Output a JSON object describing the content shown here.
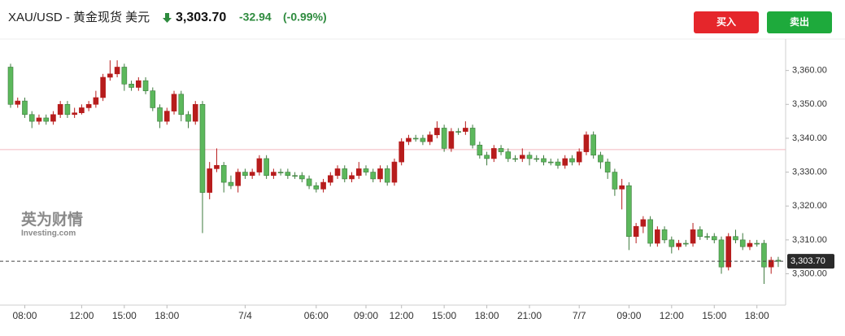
{
  "header": {
    "symbol": "XAU/USD - 黄金现货 美元",
    "price": "3,303.70",
    "change": "-32.94",
    "change_pct": "(-0.99%)"
  },
  "buttons": {
    "buy": "买入",
    "sell": "卖出"
  },
  "watermark": {
    "cn": "英为财情",
    "en": "Investing.com"
  },
  "chart_data": {
    "type": "candlestick",
    "up_color": "#b71c1c",
    "down_color": "#5cb85c",
    "ylim": [
      3291,
      3370
    ],
    "yticks": [
      {
        "value": 3300,
        "label": "3,300.00"
      },
      {
        "value": 3310,
        "label": "3,310.00"
      },
      {
        "value": 3320,
        "label": "3,320.00"
      },
      {
        "value": 3330,
        "label": "3,330.00"
      },
      {
        "value": 3340,
        "label": "3,340.00"
      },
      {
        "value": 3350,
        "label": "3,350.00"
      },
      {
        "value": 3360,
        "label": "3,360.00"
      }
    ],
    "prev_close": 3336.64,
    "last_price": {
      "value": 3303.7,
      "label": "3,303.70"
    },
    "categories": [
      null,
      null,
      "08:00",
      null,
      null,
      null,
      null,
      null,
      null,
      null,
      "12:00",
      null,
      null,
      null,
      null,
      null,
      "15:00",
      null,
      null,
      null,
      null,
      null,
      "18:00",
      null,
      null,
      null,
      null,
      null,
      null,
      null,
      null,
      null,
      null,
      "7/4",
      null,
      null,
      null,
      null,
      null,
      null,
      null,
      null,
      null,
      "06:00",
      null,
      null,
      null,
      null,
      null,
      null,
      "09:00",
      null,
      null,
      null,
      null,
      "12:00",
      null,
      null,
      null,
      null,
      null,
      "15:00",
      null,
      null,
      null,
      null,
      null,
      "18:00",
      null,
      null,
      null,
      null,
      null,
      "21:00",
      null,
      null,
      null,
      null,
      null,
      null,
      "7/7",
      null,
      null,
      null,
      null,
      null,
      null,
      "09:00",
      null,
      null,
      null,
      null,
      null,
      "12:00",
      null,
      null,
      null,
      null,
      null,
      "15:00",
      null,
      null,
      null,
      null,
      null,
      "18:00",
      null,
      null,
      null
    ],
    "open": [
      3361,
      3350,
      3351,
      3347,
      3345,
      3346,
      3345,
      3347,
      3350,
      3347,
      3347.5,
      3349,
      3350,
      3352,
      3358,
      3359,
      3361,
      3356,
      3355,
      3357,
      3354,
      3349,
      3345,
      3348,
      3353,
      3347,
      3345,
      3350,
      3324,
      3331,
      3332,
      3327,
      3326,
      3330,
      3329,
      3330,
      3334,
      3329,
      3330,
      3330,
      3329,
      3329,
      3328,
      3326,
      3325,
      3327,
      3329,
      3331,
      3328,
      3329,
      3331,
      3330,
      3328,
      3331,
      3327,
      3333,
      3339,
      3340,
      3340,
      3339,
      3341,
      3343,
      3337,
      3342,
      3342,
      3343,
      3338,
      3335,
      3334,
      3337,
      3336,
      3334,
      3334,
      3335,
      3334,
      3334,
      3333,
      3333,
      3332,
      3334,
      3333,
      3336,
      3341,
      3335,
      3333,
      3330,
      3325,
      3326,
      3311,
      3314,
      3316,
      3309,
      3313,
      3310,
      3308,
      3309,
      3309,
      3313,
      3311,
      3311,
      3310,
      3302,
      3311,
      3310,
      3308,
      3309,
      3309,
      3302,
      3304
    ],
    "high": [
      3362,
      3352,
      3352,
      3348,
      3347,
      3347,
      3348,
      3351,
      3351,
      3349,
      3350,
      3351,
      3354,
      3359,
      3363,
      3363,
      3362,
      3357,
      3358,
      3358,
      3355,
      3350,
      3349,
      3354,
      3354,
      3348,
      3351,
      3351,
      3333,
      3337,
      3333,
      3329,
      3331,
      3331,
      3331,
      3335,
      3335,
      3331,
      3331,
      3331,
      3330,
      3330,
      3329,
      3327,
      3328,
      3330,
      3332,
      3332,
      3330,
      3333,
      3332,
      3331,
      3332,
      3332,
      3334,
      3340,
      3341,
      3341,
      3341,
      3342,
      3345,
      3344,
      3343,
      3343,
      3345,
      3344,
      3339,
      3336,
      3338,
      3338,
      3337,
      3335,
      3337,
      3336,
      3335,
      3335,
      3334,
      3334,
      3335,
      3335,
      3337,
      3342,
      3342,
      3336,
      3334,
      3331,
      3328,
      3327,
      3315,
      3317,
      3317,
      3314,
      3314,
      3311,
      3310,
      3310,
      3315,
      3314,
      3312,
      3312,
      3311,
      3312,
      3313,
      3312,
      3310,
      3310,
      3310,
      3305,
      3305
    ],
    "low": [
      3349,
      3349,
      3346,
      3343,
      3344,
      3344,
      3344,
      3346,
      3346,
      3346,
      3347,
      3348,
      3349,
      3351,
      3357,
      3358,
      3354,
      3354,
      3354,
      3353,
      3348,
      3343,
      3344,
      3347,
      3345,
      3343,
      3344,
      3312,
      3322,
      3330,
      3324,
      3325,
      3324,
      3328,
      3328,
      3329,
      3328,
      3328,
      3329,
      3328,
      3328,
      3327,
      3325,
      3324,
      3324,
      3326,
      3328,
      3327,
      3327,
      3328,
      3329,
      3327,
      3327,
      3326,
      3326,
      3332,
      3338,
      3339,
      3338,
      3338,
      3340,
      3336,
      3336,
      3341,
      3341,
      3337,
      3334,
      3332,
      3333,
      3335,
      3333,
      3333,
      3333,
      3332,
      3333,
      3332,
      3332,
      3331,
      3331,
      3332,
      3332,
      3335,
      3334,
      3331,
      3328,
      3323,
      3319,
      3307,
      3309,
      3312,
      3308,
      3308,
      3309,
      3306,
      3307,
      3308,
      3308,
      3310,
      3310,
      3309,
      3300,
      3301,
      3309,
      3307,
      3307,
      3308,
      3297,
      3300,
      3302
    ],
    "close": [
      3350,
      3351,
      3347,
      3345,
      3346,
      3345,
      3347,
      3350,
      3347,
      3347.5,
      3349,
      3350,
      3352,
      3358,
      3359,
      3361,
      3356,
      3355,
      3357,
      3354,
      3349,
      3345,
      3348,
      3353,
      3347,
      3345,
      3350,
      3324,
      3331,
      3332,
      3327,
      3326,
      3330,
      3329,
      3330,
      3334,
      3329,
      3330,
      3330,
      3329,
      3329,
      3328,
      3326,
      3325,
      3327,
      3329,
      3331,
      3328,
      3329,
      3331,
      3330,
      3328,
      3331,
      3327,
      3333,
      3339,
      3340,
      3340,
      3339,
      3341,
      3343,
      3337,
      3342,
      3342,
      3343,
      3338,
      3335,
      3334,
      3337,
      3336,
      3334,
      3334,
      3335,
      3334,
      3334,
      3333,
      3333,
      3332,
      3334,
      3333,
      3336,
      3341,
      3335,
      3333,
      3330,
      3325,
      3326,
      3311,
      3314,
      3316,
      3309,
      3313,
      3310,
      3308,
      3309,
      3309,
      3313,
      3311,
      3311,
      3310,
      3302,
      3311,
      3310,
      3308,
      3309,
      3309,
      3302,
      3304,
      3303.7
    ]
  }
}
